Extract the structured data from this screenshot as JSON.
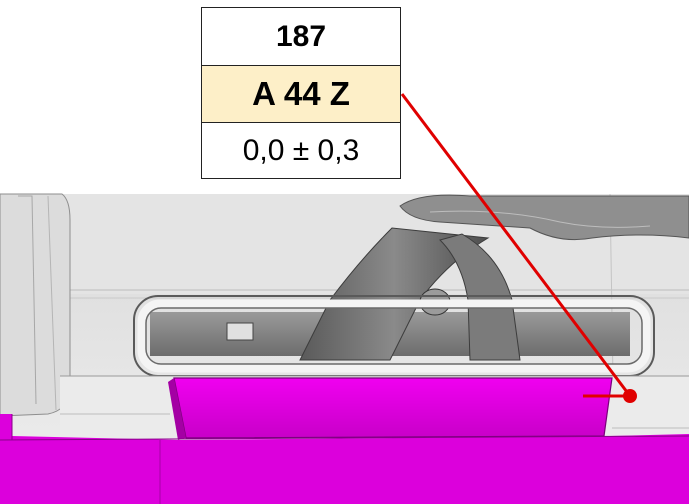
{
  "label": {
    "id": "187",
    "code": "A 44 Z",
    "tolerance": "0,0 ± 0,3"
  },
  "colors": {
    "highlight": "#e600e6",
    "code_background": "#fdefc8",
    "leader": "#e00000"
  }
}
